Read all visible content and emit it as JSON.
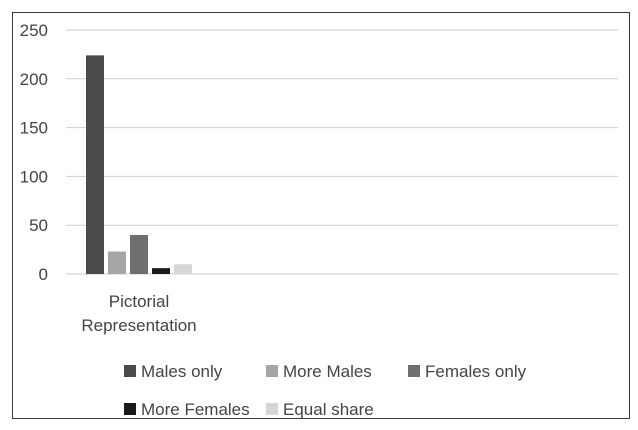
{
  "chart_data": {
    "type": "bar",
    "categories": [
      "Pictorial Representation"
    ],
    "category_label_lines": [
      [
        "Pictorial",
        "Representation"
      ]
    ],
    "series": [
      {
        "name": "Males only",
        "values": [
          224
        ],
        "color": "#4a4a4a"
      },
      {
        "name": "More Males",
        "values": [
          23
        ],
        "color": "#a6a6a6"
      },
      {
        "name": "Females only",
        "values": [
          40
        ],
        "color": "#6f6f6f"
      },
      {
        "name": "More Females",
        "values": [
          6
        ],
        "color": "#1a1a1a"
      },
      {
        "name": "Equal share",
        "values": [
          10
        ],
        "color": "#d6d6d6"
      }
    ],
    "ylim": [
      0,
      250
    ],
    "yticks": [
      "0",
      "50",
      "100",
      "150",
      "200",
      "250"
    ],
    "grid": true,
    "legend_placement": "bottom"
  }
}
